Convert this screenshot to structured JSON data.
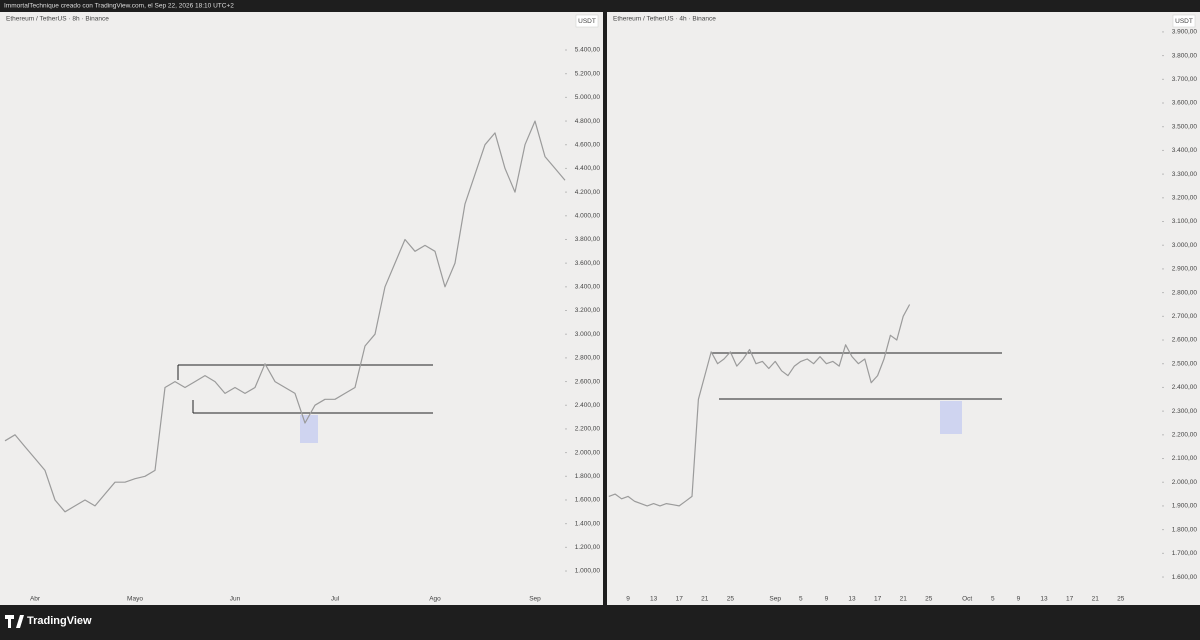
{
  "header": {
    "caption": "ImmortalTechnique creado con TradingView.com, el Sep 22, 2026 18:10 UTC+2"
  },
  "footer": {
    "brand": "TradingView"
  },
  "chart_data": [
    {
      "type": "line",
      "title": "Ethereum / TetherUS · 8h · Binance",
      "currency": "USDT",
      "color": "#9b9b9b",
      "grid": false,
      "categories": [
        null,
        null,
        null,
        "Abr",
        null,
        null,
        null,
        null,
        null,
        null,
        null,
        null,
        null,
        "Mayo",
        null,
        null,
        null,
        null,
        null,
        null,
        null,
        null,
        null,
        "Jun",
        null,
        null,
        null,
        null,
        null,
        null,
        null,
        null,
        null,
        "Jul",
        null,
        null,
        null,
        null,
        null,
        null,
        null,
        null,
        null,
        "Ago",
        null,
        null,
        null,
        null,
        null,
        null,
        null,
        null,
        null,
        "Sep",
        null,
        null,
        null
      ],
      "values": [
        2100,
        2150,
        2050,
        1950,
        1850,
        1600,
        1500,
        1550,
        1600,
        1550,
        1650,
        1750,
        1750,
        1780,
        1800,
        1850,
        2550,
        2600,
        2550,
        2600,
        2650,
        2600,
        2500,
        2550,
        2500,
        2550,
        2750,
        2600,
        2550,
        2500,
        2250,
        2400,
        2450,
        2450,
        2500,
        2550,
        2900,
        3000,
        3400,
        3600,
        3800,
        3700,
        3750,
        3700,
        3400,
        3600,
        4100,
        4350,
        4600,
        4700,
        4400,
        4200,
        4600,
        4800,
        4500,
        4400,
        4300
      ],
      "ylim": [
        713,
        5721
      ],
      "yticks": [
        {
          "value": 1000,
          "label": "1.000,00"
        },
        {
          "value": 1200,
          "label": "1.200,00"
        },
        {
          "value": 1400,
          "label": "1.400,00"
        },
        {
          "value": 1600,
          "label": "1.600,00"
        },
        {
          "value": 1800,
          "label": "1.800,00"
        },
        {
          "value": 2000,
          "label": "2.000,00"
        },
        {
          "value": 2200,
          "label": "2.200,00"
        },
        {
          "value": 2400,
          "label": "2.400,00"
        },
        {
          "value": 2600,
          "label": "2.600,00"
        },
        {
          "value": 2800,
          "label": "2.800,00"
        },
        {
          "value": 3000,
          "label": "3.000,00"
        },
        {
          "value": 3200,
          "label": "3.200,00"
        },
        {
          "value": 3400,
          "label": "3.400,00"
        },
        {
          "value": 3600,
          "label": "3.600,00"
        },
        {
          "value": 3800,
          "label": "3.800,00"
        },
        {
          "value": 4000,
          "label": "4.000,00"
        },
        {
          "value": 4200,
          "label": "4.200,00"
        },
        {
          "value": 4400,
          "label": "4.400,00"
        },
        {
          "value": 4600,
          "label": "4.600,00"
        },
        {
          "value": 4800,
          "label": "4.800,00"
        },
        {
          "value": 5000,
          "label": "5.000,00"
        },
        {
          "value": 5200,
          "label": "5.200,00"
        },
        {
          "value": 5400,
          "label": "5.400,00"
        }
      ]
    },
    {
      "type": "line",
      "title": "Ethereum / TetherUS · 4h · Binance",
      "currency": "USDT",
      "color": "#9b9b9b",
      "grid": false,
      "categories": [
        null,
        null,
        null,
        "9",
        null,
        null,
        null,
        "13",
        null,
        null,
        null,
        "17",
        null,
        null,
        null,
        "21",
        null,
        null,
        null,
        "25",
        null,
        null,
        null,
        null,
        null,
        null,
        "Sep",
        null,
        null,
        null,
        "5",
        null,
        null,
        null,
        "9",
        null,
        null,
        null,
        "13",
        null,
        null,
        null,
        "17",
        null,
        null,
        null,
        "21",
        null,
        null,
        null,
        "25",
        null,
        null,
        null,
        null,
        null,
        "Oct",
        null,
        null,
        null,
        "5",
        null,
        null,
        null,
        "9",
        null,
        null,
        null,
        "13",
        null,
        null,
        null,
        "17",
        null,
        null,
        null,
        "21",
        null,
        null,
        null,
        "25",
        null,
        null,
        null,
        null,
        null,
        null
      ],
      "values": [
        1940,
        1950,
        1930,
        1940,
        1920,
        1910,
        1900,
        1910,
        1900,
        1910,
        1905,
        1900,
        1920,
        1940,
        2350,
        2450,
        2550,
        2500,
        2520,
        2550,
        2490,
        2520,
        2560,
        2500,
        2510,
        2480,
        2510,
        2470,
        2450,
        2490,
        2510,
        2520,
        2500,
        2530,
        2500,
        2510,
        2490,
        2580,
        2530,
        2500,
        2520,
        2420,
        2450,
        2520,
        2620,
        2600,
        2700,
        2750,
        null,
        null,
        null,
        null,
        null,
        null,
        null,
        null,
        null,
        null,
        null,
        null,
        null,
        null,
        null,
        null,
        null,
        null,
        null,
        null,
        null,
        null,
        null,
        null,
        null,
        null,
        null,
        null,
        null,
        null,
        null,
        null,
        null,
        null,
        null,
        null,
        null,
        null,
        null
      ],
      "ylim": [
        1482,
        3984
      ],
      "yticks": [
        {
          "value": 1600,
          "label": "1.600,00"
        },
        {
          "value": 1700,
          "label": "1.700,00"
        },
        {
          "value": 1800,
          "label": "1.800,00"
        },
        {
          "value": 1900,
          "label": "1.900,00"
        },
        {
          "value": 2000,
          "label": "2.000,00"
        },
        {
          "value": 2100,
          "label": "2.100,00"
        },
        {
          "value": 2200,
          "label": "2.200,00"
        },
        {
          "value": 2300,
          "label": "2.300,00"
        },
        {
          "value": 2400,
          "label": "2.400,00"
        },
        {
          "value": 2500,
          "label": "2.500,00"
        },
        {
          "value": 2600,
          "label": "2.600,00"
        },
        {
          "value": 2700,
          "label": "2.700,00"
        },
        {
          "value": 2800,
          "label": "2.800,00"
        },
        {
          "value": 2900,
          "label": "2.900,00"
        },
        {
          "value": 3000,
          "label": "3.000,00"
        },
        {
          "value": 3100,
          "label": "3.100,00"
        },
        {
          "value": 3200,
          "label": "3.200,00"
        },
        {
          "value": 3300,
          "label": "3.300,00"
        },
        {
          "value": 3400,
          "label": "3.400,00"
        },
        {
          "value": 3500,
          "label": "3.500,00"
        },
        {
          "value": 3600,
          "label": "3.600,00"
        },
        {
          "value": 3700,
          "label": "3.700,00"
        },
        {
          "value": 3800,
          "label": "3.800,00"
        },
        {
          "value": 3900,
          "label": "3.900,00"
        }
      ]
    }
  ]
}
